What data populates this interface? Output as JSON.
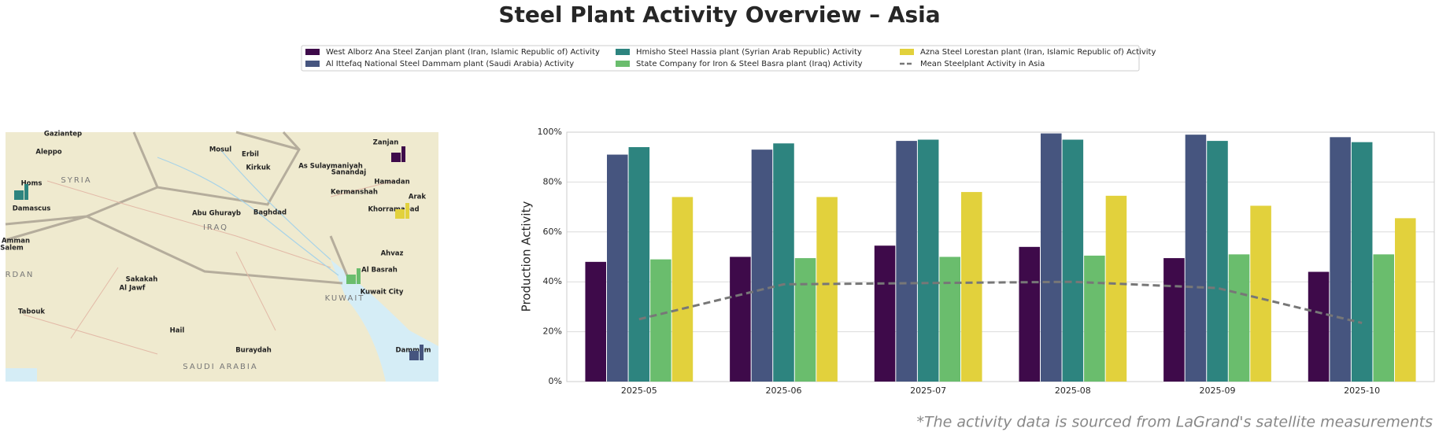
{
  "chart_data": {
    "type": "bar",
    "title": "Steel Plant Activity Overview – Asia",
    "y_label": "Production Activity",
    "categories": [
      "2025-05",
      "2025-06",
      "2025-07",
      "2025-08",
      "2025-09",
      "2025-10"
    ],
    "series": [
      {
        "name": "West Alborz Ana Steel Zanjan plant (Iran, Islamic Republic of) Activity",
        "color": "#3e0a4a",
        "values": [
          48,
          50,
          54.5,
          54,
          49.5,
          44
        ]
      },
      {
        "name": "Al Ittefaq National Steel Dammam plant (Saudi Arabia) Activity",
        "color": "#46557f",
        "values": [
          91,
          93,
          96.5,
          99.5,
          99,
          98
        ]
      },
      {
        "name": "Hmisho Steel Hassia plant (Syrian Arab Republic) Activity",
        "color": "#2d847f",
        "values": [
          94,
          95.5,
          97,
          97,
          96.5,
          96
        ]
      },
      {
        "name": "State Company for Iron & Steel Basra plant (Iraq) Activity",
        "color": "#6abd6d",
        "values": [
          49,
          49.5,
          50,
          50.5,
          51,
          51
        ]
      },
      {
        "name": "Azna Steel Lorestan plant (Iran, Islamic Republic of) Activity",
        "color": "#e2d13c",
        "values": [
          74,
          74,
          76,
          74.5,
          70.5,
          65.5
        ]
      },
      {
        "name": "Mean Steelplant Activity in Asia",
        "color": "#777777",
        "type": "line",
        "dashed": true,
        "values": [
          25,
          39,
          39.5,
          40,
          37.5,
          23.5
        ]
      }
    ],
    "ylim": [
      0,
      100
    ],
    "yticks": [
      {
        "value": 0,
        "label": "0%"
      },
      {
        "value": 20,
        "label": "20%"
      },
      {
        "value": 40,
        "label": "40%"
      },
      {
        "value": 60,
        "label": "60%"
      },
      {
        "value": 80,
        "label": "80%"
      },
      {
        "value": 100,
        "label": "100%"
      }
    ],
    "grid": true
  },
  "map": {
    "labels": [
      "Gaziantep",
      "Aleppo",
      "Mosul",
      "Erbil",
      "Zanjan",
      "Kirkuk",
      "As Sulaymaniyah",
      "Sanandaj",
      "Homs",
      "SYRIA",
      "Hamadan",
      "Kermanshah",
      "Arak",
      "Abu Ghurayb",
      "Baghdad",
      "Khorramabad",
      "Damascus",
      "IRAQ",
      "Amman",
      "Salem",
      "Ahvaz",
      "Al Basrah",
      "RDAN",
      "Sakakah",
      "Al Jawf",
      "Kuwait City",
      "KUWAIT",
      "Tabouk",
      "Hail",
      "Buraydah",
      "SAUDI ARABIA",
      "Dammam"
    ]
  },
  "footnote": "*The activity data is sourced from LaGrand's satellite measurements"
}
